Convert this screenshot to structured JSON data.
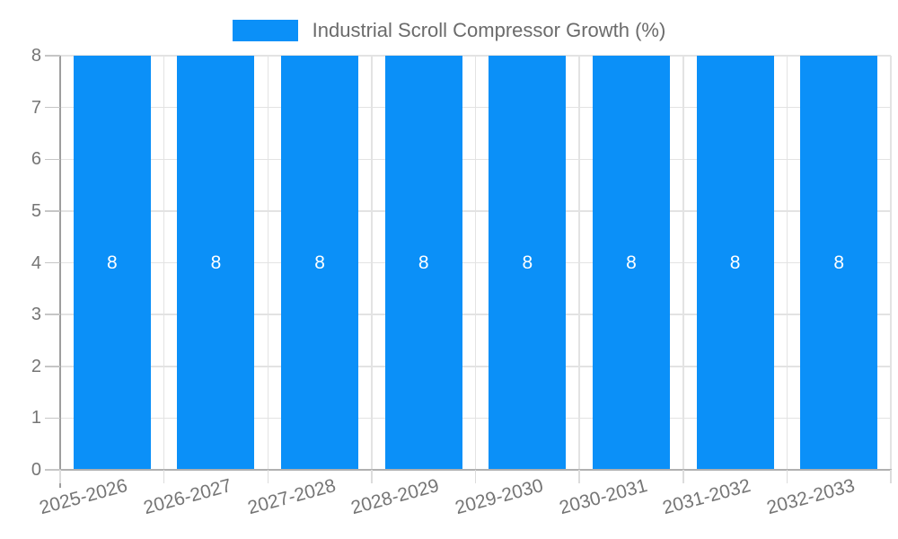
{
  "chart_data": {
    "type": "bar",
    "title": "Industrial Scroll Compressor Growth (%)",
    "categories": [
      "2025-2026",
      "2026-2027",
      "2027-2028",
      "2028-2029",
      "2029-2030",
      "2030-2031",
      "2031-2032",
      "2032-2033"
    ],
    "series": [
      {
        "name": "Industrial Scroll Compressor Growth (%)",
        "values": [
          8,
          8,
          8,
          8,
          8,
          8,
          8,
          8
        ]
      }
    ],
    "bar_value_labels": [
      "8",
      "8",
      "8",
      "8",
      "8",
      "8",
      "8",
      "8"
    ],
    "xlabel": "",
    "ylabel": "",
    "ylim": [
      0,
      8
    ],
    "yticks": [
      0,
      1,
      2,
      3,
      4,
      5,
      6,
      7,
      8
    ],
    "grid": true,
    "legend_position": "top",
    "x_label_rotation_deg": -15,
    "colors": {
      "bar": "#0b90f8",
      "bar_label": "#ffffff",
      "axis_text": "#757575",
      "grid_line": "#e3e3e3",
      "axis_line": "#b0b0b0",
      "y_axis_line": "#9e9e9e",
      "legend_text": "#6b6b6b",
      "background": "#ffffff"
    }
  }
}
